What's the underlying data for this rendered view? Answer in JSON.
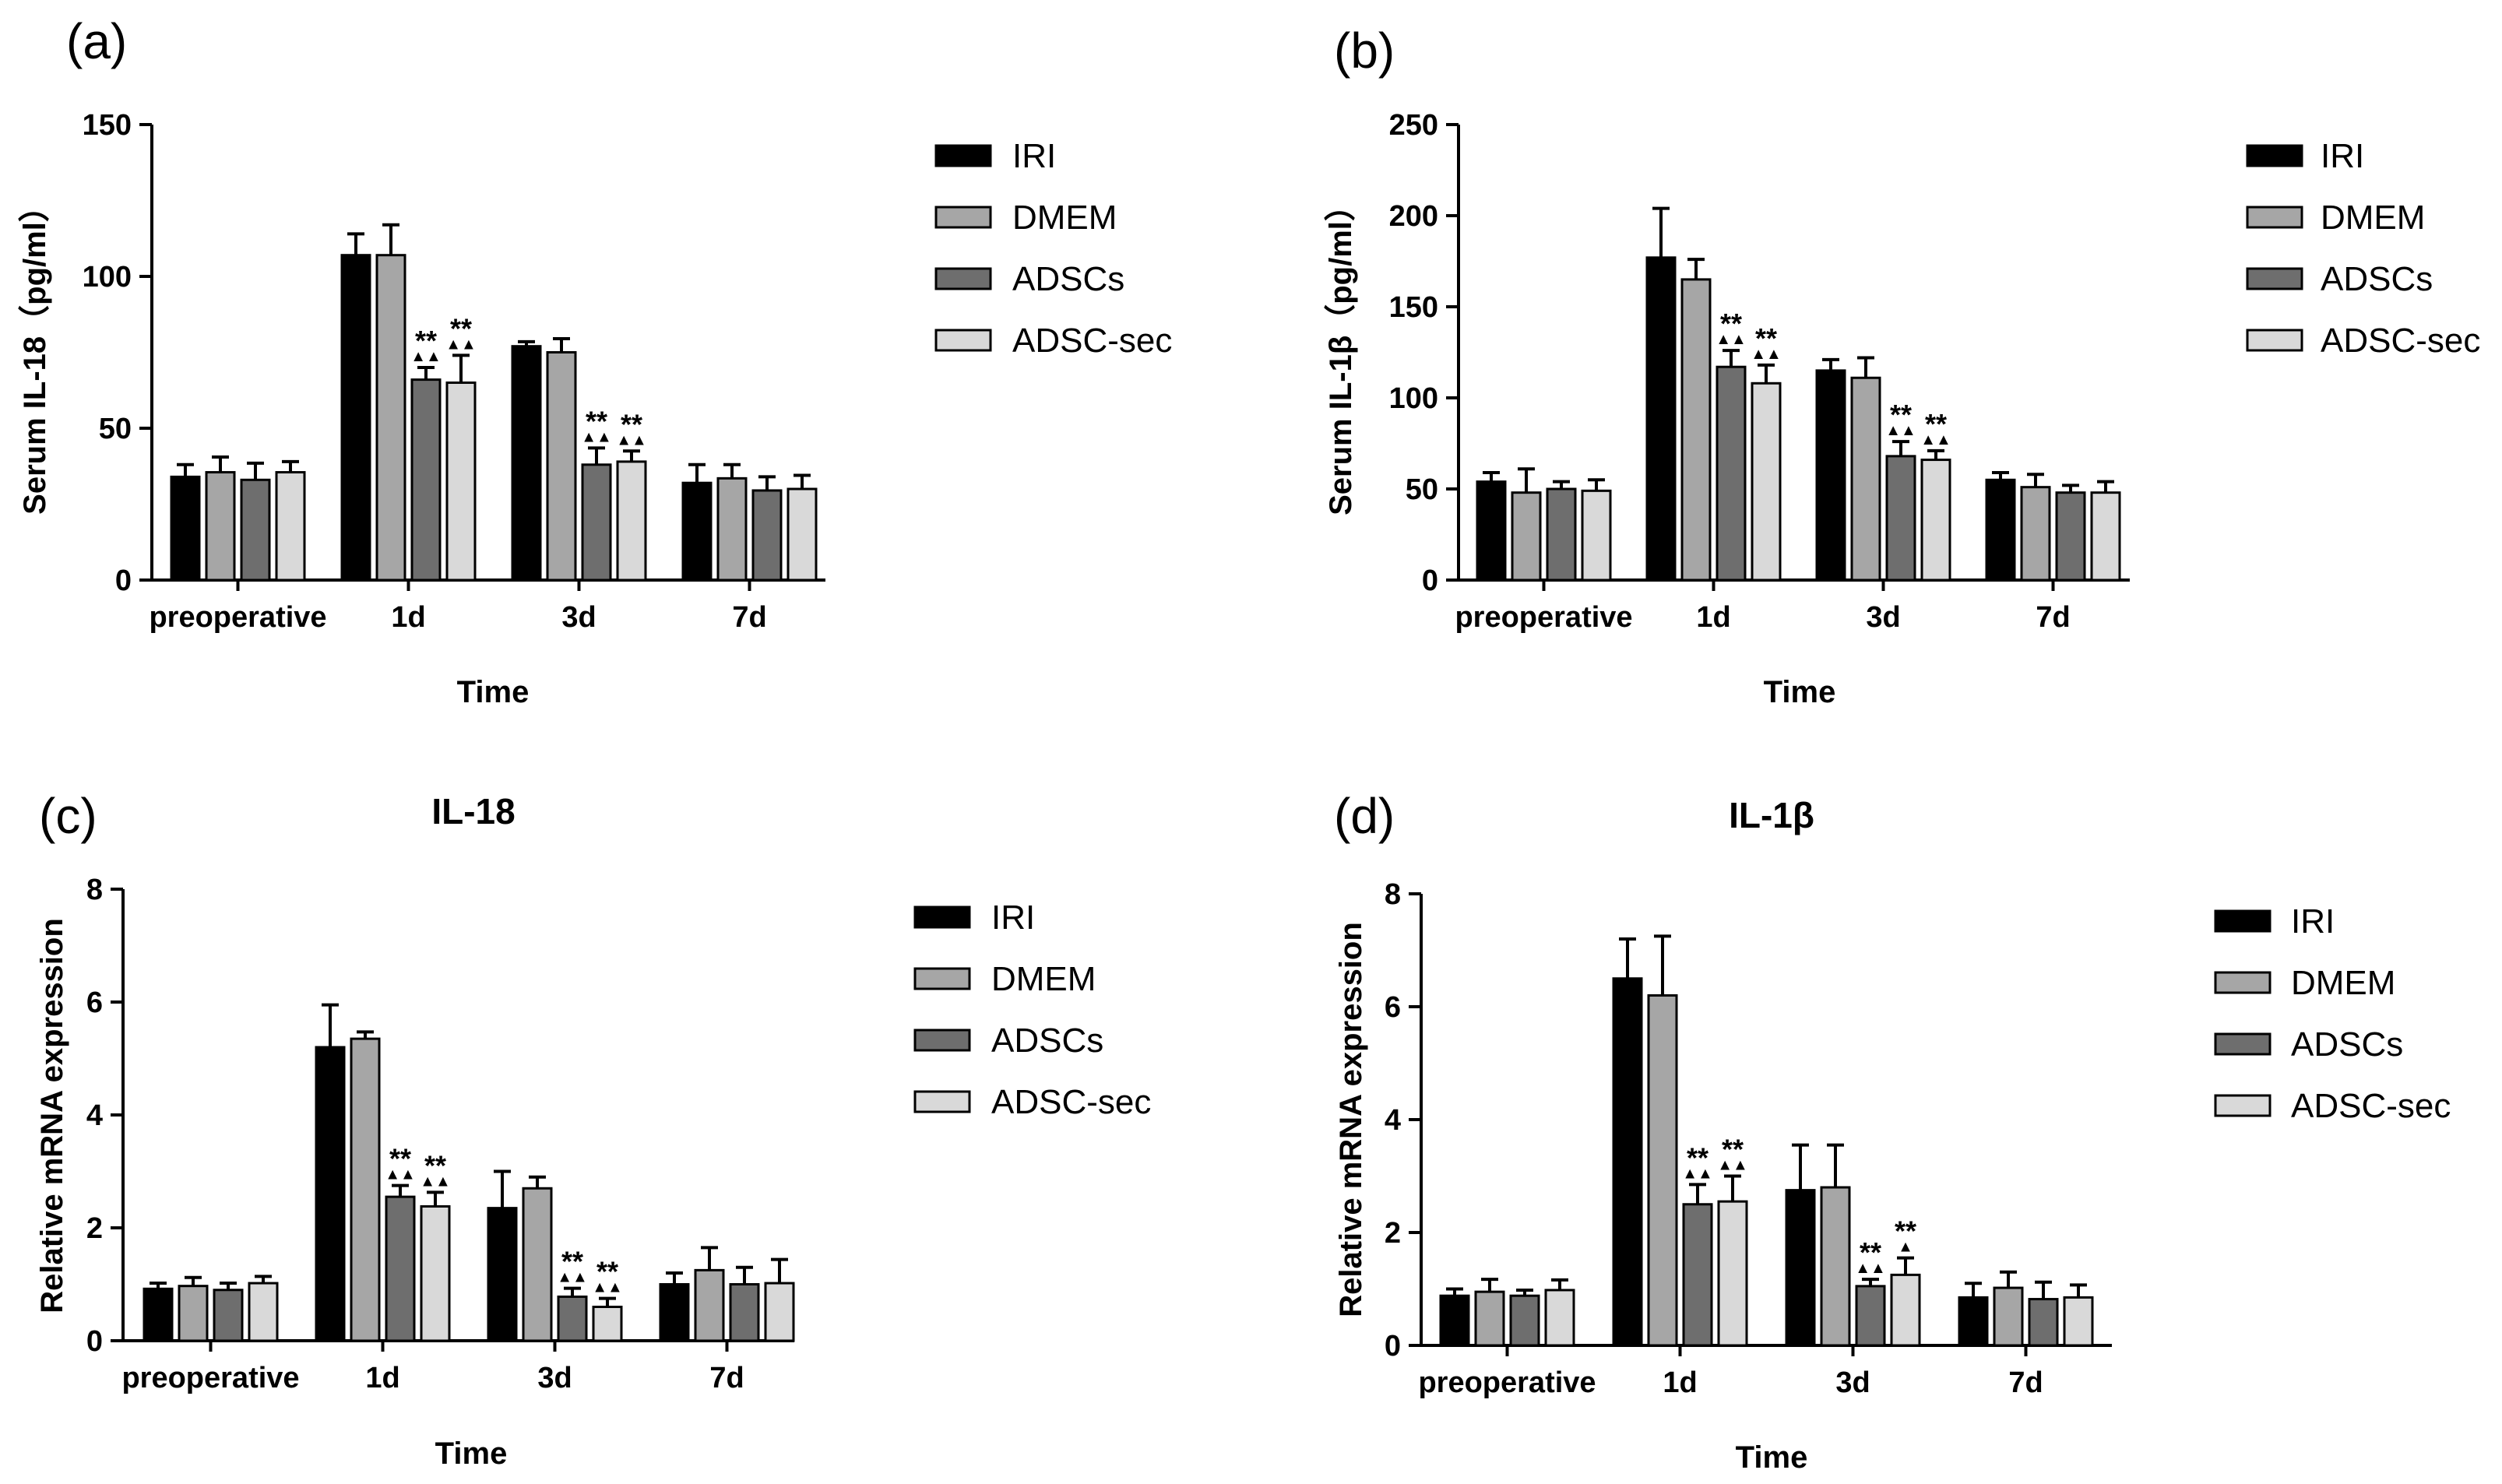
{
  "figure": {
    "legend_entries": [
      "IRI",
      "DMEM",
      "ADSCs",
      "ADSC-sec"
    ],
    "colors": {
      "IRI": "#000000",
      "DMEM": "#a6a6a6",
      "ADSCs": "#6e6e6e",
      "ADSC-sec": "#d9d9d9"
    }
  },
  "chart_data": [
    {
      "panel": "(a)",
      "type": "bar",
      "title": "",
      "xlabel": "Time",
      "ylabel": "Serum IL-18（pg/ml）",
      "categories": [
        "preoperative",
        "1d",
        "3d",
        "7d"
      ],
      "ylim": [
        0,
        150
      ],
      "yticks": [
        0,
        50,
        100,
        150
      ],
      "legend_position": "right",
      "series": [
        {
          "name": "IRI",
          "values": [
            34,
            107,
            77,
            32
          ],
          "errors": [
            4,
            7,
            1.5,
            6
          ]
        },
        {
          "name": "DMEM",
          "values": [
            35.5,
            107,
            75,
            33.5
          ],
          "errors": [
            5,
            10,
            4.5,
            4.5
          ]
        },
        {
          "name": "ADSCs",
          "values": [
            33,
            66,
            38,
            29.5
          ],
          "errors": [
            5.5,
            4,
            5.5,
            4.5
          ]
        },
        {
          "name": "ADSC-sec",
          "values": [
            35.5,
            65,
            39,
            30
          ],
          "errors": [
            3.5,
            9,
            3.5,
            4.5
          ]
        }
      ],
      "significance": [
        {
          "category": "1d",
          "series": "ADSCs",
          "stars": "**",
          "triangles": "▲▲"
        },
        {
          "category": "1d",
          "series": "ADSC-sec",
          "stars": "**",
          "triangles": "▲▲"
        },
        {
          "category": "3d",
          "series": "ADSCs",
          "stars": "**",
          "triangles": "▲▲"
        },
        {
          "category": "3d",
          "series": "ADSC-sec",
          "stars": "**",
          "triangles": "▲▲"
        }
      ]
    },
    {
      "panel": "(b)",
      "type": "bar",
      "title": "",
      "xlabel": "Time",
      "ylabel": "Serum IL-1β（pg/ml）",
      "categories": [
        "preoperative",
        "1d",
        "3d",
        "7d"
      ],
      "ylim": [
        0,
        250
      ],
      "yticks": [
        0,
        50,
        100,
        150,
        200,
        250
      ],
      "legend_position": "right",
      "series": [
        {
          "name": "IRI",
          "values": [
            54,
            177,
            115,
            55
          ],
          "errors": [
            5,
            27,
            6,
            4
          ]
        },
        {
          "name": "DMEM",
          "values": [
            48,
            165,
            111,
            51
          ],
          "errors": [
            13,
            11,
            11,
            7
          ]
        },
        {
          "name": "ADSCs",
          "values": [
            50,
            117,
            68,
            48
          ],
          "errors": [
            4,
            9,
            8,
            4
          ]
        },
        {
          "name": "ADSC-sec",
          "values": [
            49,
            108,
            66,
            48
          ],
          "errors": [
            6,
            10,
            5,
            6
          ]
        }
      ],
      "significance": [
        {
          "category": "1d",
          "series": "ADSCs",
          "stars": "**",
          "triangles": "▲▲"
        },
        {
          "category": "1d",
          "series": "ADSC-sec",
          "stars": "**",
          "triangles": "▲▲"
        },
        {
          "category": "3d",
          "series": "ADSCs",
          "stars": "**",
          "triangles": "▲▲"
        },
        {
          "category": "3d",
          "series": "ADSC-sec",
          "stars": "**",
          "triangles": "▲▲"
        }
      ]
    },
    {
      "panel": "(c)",
      "type": "bar",
      "title": "IL-18",
      "xlabel": "Time",
      "ylabel": "Relative mRNA expression",
      "categories": [
        "preoperative",
        "1d",
        "3d",
        "7d"
      ],
      "ylim": [
        0,
        8
      ],
      "yticks": [
        0,
        2,
        4,
        6,
        8
      ],
      "legend_position": "right",
      "series": [
        {
          "name": "IRI",
          "values": [
            0.92,
            5.2,
            2.35,
            1.0
          ],
          "errors": [
            0.1,
            0.75,
            0.65,
            0.2
          ]
        },
        {
          "name": "DMEM",
          "values": [
            0.97,
            5.35,
            2.7,
            1.25
          ],
          "errors": [
            0.15,
            0.12,
            0.2,
            0.4
          ]
        },
        {
          "name": "ADSCs",
          "values": [
            0.9,
            2.55,
            0.78,
            1.0
          ],
          "errors": [
            0.12,
            0.2,
            0.15,
            0.3
          ]
        },
        {
          "name": "ADSC-sec",
          "values": [
            1.02,
            2.38,
            0.6,
            1.02
          ],
          "errors": [
            0.12,
            0.25,
            0.15,
            0.42
          ]
        }
      ],
      "significance": [
        {
          "category": "1d",
          "series": "ADSCs",
          "stars": "**",
          "triangles": "▲▲"
        },
        {
          "category": "1d",
          "series": "ADSC-sec",
          "stars": "**",
          "triangles": "▲▲"
        },
        {
          "category": "3d",
          "series": "ADSCs",
          "stars": "**",
          "triangles": "▲▲"
        },
        {
          "category": "3d",
          "series": "ADSC-sec",
          "stars": "**",
          "triangles": "▲▲"
        }
      ]
    },
    {
      "panel": "(d)",
      "type": "bar",
      "title": "IL-1β",
      "xlabel": "Time",
      "ylabel": "Relative mRNA expression",
      "categories": [
        "preoperative",
        "1d",
        "3d",
        "7d"
      ],
      "ylim": [
        0,
        8
      ],
      "yticks": [
        0,
        2,
        4,
        6,
        8
      ],
      "legend_position": "right",
      "series": [
        {
          "name": "IRI",
          "values": [
            0.88,
            6.5,
            2.75,
            0.85
          ],
          "errors": [
            0.12,
            0.7,
            0.8,
            0.25
          ]
        },
        {
          "name": "DMEM",
          "values": [
            0.95,
            6.2,
            2.8,
            1.02
          ],
          "errors": [
            0.22,
            1.05,
            0.75,
            0.28
          ]
        },
        {
          "name": "ADSCs",
          "values": [
            0.88,
            2.5,
            1.05,
            0.82
          ],
          "errors": [
            0.1,
            0.35,
            0.12,
            0.3
          ]
        },
        {
          "name": "ADSC-sec",
          "values": [
            0.98,
            2.55,
            1.25,
            0.85
          ],
          "errors": [
            0.18,
            0.45,
            0.3,
            0.22
          ]
        }
      ],
      "significance": [
        {
          "category": "1d",
          "series": "ADSCs",
          "stars": "**",
          "triangles": "▲▲"
        },
        {
          "category": "1d",
          "series": "ADSC-sec",
          "stars": "**",
          "triangles": "▲▲"
        },
        {
          "category": "3d",
          "series": "ADSCs",
          "stars": "**",
          "triangles": "▲▲"
        },
        {
          "category": "3d",
          "series": "ADSC-sec",
          "stars": "**",
          "triangles": "▲"
        }
      ]
    }
  ]
}
